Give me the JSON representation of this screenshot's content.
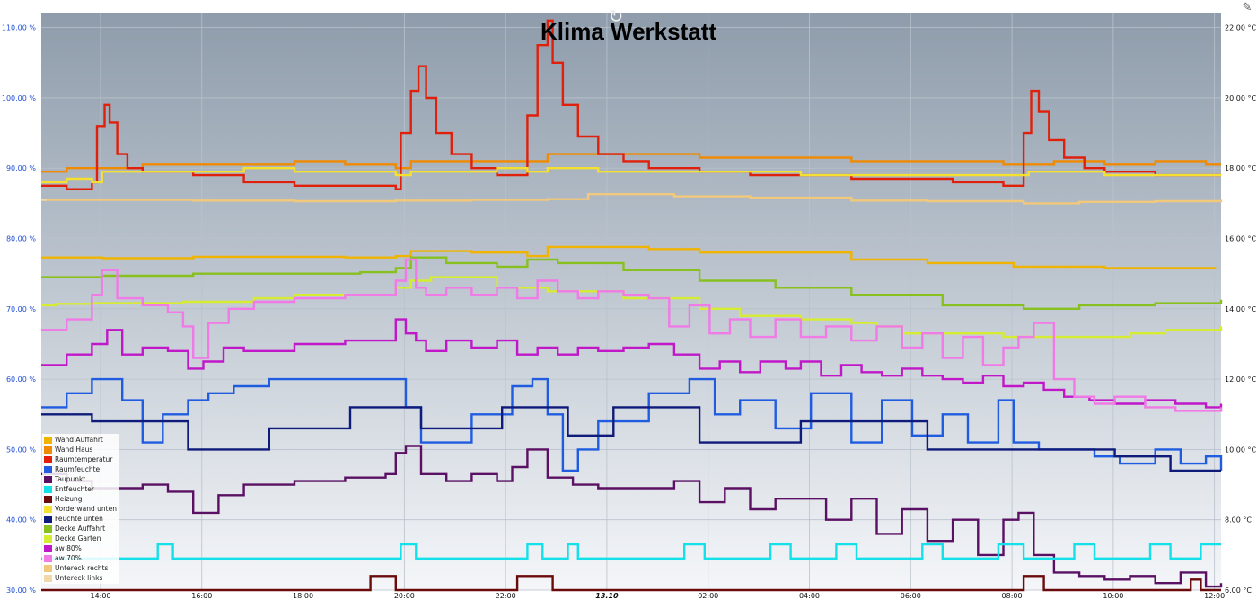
{
  "chart_data": {
    "type": "line",
    "title": "Klima Werkstatt",
    "y_left": {
      "unit": "%",
      "ylim": [
        30,
        112
      ],
      "ticks": [
        "30.00 %",
        "40.00 %",
        "50.00 %",
        "60.00 %",
        "70.00 %",
        "80.00 %",
        "90.00 %",
        "100.00 %",
        "110.00 %"
      ],
      "tick_values": [
        30,
        40,
        50,
        60,
        70,
        80,
        90,
        100,
        110
      ]
    },
    "y_right": {
      "unit": "°C",
      "ylim": [
        6,
        22.4
      ],
      "ticks": [
        "6.00 °C",
        "8.00 °C",
        "10.00 °C",
        "12.00 °C",
        "14.00 °C",
        "16.00 °C",
        "18.00 °C",
        "20.00 °C",
        "22.00 °C"
      ],
      "tick_values": [
        6,
        8,
        10,
        12,
        14,
        16,
        18,
        20,
        22
      ]
    },
    "x_axis": {
      "unit": "hours since 12:50",
      "xlim": [
        0,
        23.3
      ],
      "ticks": [
        {
          "label": "14:00",
          "h": 1.17,
          "bold": false
        },
        {
          "label": "16:00",
          "h": 3.17,
          "bold": false
        },
        {
          "label": "18:00",
          "h": 5.17,
          "bold": false
        },
        {
          "label": "20:00",
          "h": 7.17,
          "bold": false
        },
        {
          "label": "22:00",
          "h": 9.17,
          "bold": false
        },
        {
          "label": "13.10",
          "h": 11.17,
          "bold": true
        },
        {
          "label": "02:00",
          "h": 13.17,
          "bold": false
        },
        {
          "label": "04:00",
          "h": 15.17,
          "bold": false
        },
        {
          "label": "06:00",
          "h": 17.17,
          "bold": false
        },
        {
          "label": "08:00",
          "h": 19.17,
          "bold": false
        },
        {
          "label": "10:00",
          "h": 21.17,
          "bold": false
        },
        {
          "label": "12:00",
          "h": 23.17,
          "bold": false
        }
      ]
    },
    "grid": true,
    "legend_position": "bottom-left",
    "series": [
      {
        "name": "Wand Auffahrt",
        "color": "#f0b400",
        "axis": "left",
        "x": [
          0,
          1.2,
          3,
          6,
          7,
          7.3,
          8.5,
          9.6,
          10,
          12,
          13,
          16,
          17.5,
          19.2,
          21,
          23.2
        ],
        "y": [
          77.3,
          77.2,
          77.4,
          77.3,
          77.5,
          78.2,
          78.0,
          77.5,
          78.8,
          78.5,
          78.0,
          77.0,
          76.5,
          76.0,
          75.8,
          75.8
        ]
      },
      {
        "name": "Wand Haus",
        "color": "#f08a00",
        "axis": "right",
        "x": [
          0,
          0.5,
          1,
          1.5,
          2,
          3,
          4,
          5,
          6,
          7,
          7.3,
          8.5,
          9,
          10,
          11,
          12,
          13,
          14,
          15,
          16,
          17,
          18,
          19,
          20,
          21,
          22,
          23,
          23.3
        ],
        "y": [
          17.9,
          18.0,
          18.0,
          18.0,
          18.1,
          18.1,
          18.1,
          18.2,
          18.1,
          18.0,
          18.2,
          18.2,
          18.2,
          18.4,
          18.4,
          18.4,
          18.3,
          18.3,
          18.3,
          18.2,
          18.2,
          18.2,
          18.1,
          18.2,
          18.1,
          18.2,
          18.1,
          18.1
        ]
      },
      {
        "name": "Raumtemperatur",
        "color": "#e0200a",
        "axis": "right",
        "x": [
          0,
          0.5,
          1,
          1.1,
          1.25,
          1.35,
          1.5,
          1.7,
          2,
          3,
          4,
          5,
          6,
          7,
          7.1,
          7.3,
          7.45,
          7.6,
          7.8,
          8.1,
          8.5,
          9,
          9.5,
          9.6,
          9.8,
          10.0,
          10.1,
          10.3,
          10.6,
          11,
          11.5,
          12,
          13,
          14,
          15,
          16,
          17,
          18,
          19,
          19.4,
          19.55,
          19.7,
          19.9,
          20.2,
          20.6,
          21,
          22,
          23,
          23.3
        ],
        "y": [
          17.5,
          17.4,
          17.6,
          19.2,
          19.8,
          19.3,
          18.4,
          18.0,
          17.9,
          17.8,
          17.6,
          17.5,
          17.5,
          17.4,
          19.0,
          20.2,
          20.9,
          20.0,
          19.0,
          18.4,
          18.0,
          17.8,
          17.8,
          19.5,
          21.5,
          22.2,
          21.0,
          19.8,
          18.9,
          18.4,
          18.2,
          18.0,
          17.9,
          17.8,
          17.8,
          17.7,
          17.7,
          17.6,
          17.5,
          19.0,
          20.2,
          19.6,
          18.8,
          18.3,
          18.0,
          17.9,
          17.8,
          17.8,
          17.8
        ]
      },
      {
        "name": "Raumfeuchte",
        "color": "#1f5ce0",
        "axis": "left",
        "x": [
          0,
          0.5,
          1,
          1.6,
          2.0,
          2.4,
          2.9,
          3.3,
          3.8,
          4.5,
          5.5,
          6.5,
          7.0,
          7.2,
          7.5,
          8.5,
          9.3,
          9.7,
          10.0,
          10.3,
          10.6,
          11.0,
          12.0,
          12.8,
          13.3,
          13.8,
          14.5,
          15.2,
          16,
          16.6,
          17.2,
          17.8,
          18.3,
          18.9,
          19.2,
          19.7,
          20.2,
          20.8,
          21.3,
          22,
          22.5,
          23,
          23.3
        ],
        "y": [
          56,
          58,
          60,
          57,
          51,
          55,
          57,
          58,
          59,
          60,
          60,
          60,
          60,
          56,
          51,
          55,
          59,
          60,
          55,
          47,
          50,
          54,
          58,
          60,
          55,
          57,
          53,
          58,
          51,
          57,
          52,
          55,
          51,
          57,
          51,
          50,
          50,
          49,
          48,
          50,
          48,
          49,
          47
        ]
      },
      {
        "name": "Taupunkt",
        "color": "#5a1063",
        "axis": "right",
        "x": [
          0,
          0.5,
          1,
          1.5,
          2,
          2.5,
          3,
          3.5,
          4,
          5,
          6,
          6.8,
          7.0,
          7.2,
          7.5,
          8.0,
          8.5,
          9.0,
          9.3,
          9.6,
          10.0,
          10.5,
          11,
          12,
          12.5,
          13.0,
          13.5,
          14.0,
          14.5,
          15,
          15.5,
          16,
          16.5,
          17,
          17.5,
          18,
          18.5,
          19,
          19.3,
          19.6,
          20,
          20.5,
          21,
          21.5,
          22,
          22.5,
          23,
          23.3
        ],
        "y": [
          9.3,
          9.1,
          8.9,
          8.9,
          9.0,
          8.8,
          8.2,
          8.7,
          9.0,
          9.1,
          9.2,
          9.3,
          9.9,
          10.1,
          9.3,
          9.1,
          9.3,
          9.1,
          9.5,
          10.0,
          9.2,
          9.0,
          8.9,
          8.9,
          9.1,
          8.5,
          8.9,
          8.3,
          8.6,
          8.6,
          8.0,
          8.6,
          7.6,
          8.3,
          7.4,
          8.0,
          7.0,
          8.0,
          8.2,
          7.0,
          6.5,
          6.4,
          6.3,
          6.4,
          6.2,
          6.5,
          6.1,
          6.2
        ]
      },
      {
        "name": "Entfeuchter",
        "color": "#14e0ea",
        "axis": "left",
        "x": [
          0,
          2.2,
          2.3,
          2.5,
          2.6,
          3.5,
          7.0,
          7.1,
          7.3,
          7.4,
          9.5,
          9.6,
          9.8,
          9.9,
          10.3,
          10.4,
          10.6,
          12.6,
          12.7,
          13.0,
          13.1,
          14.3,
          14.4,
          14.7,
          14.8,
          15.6,
          15.7,
          16.0,
          16.1,
          17.3,
          17.4,
          17.7,
          17.8,
          18.8,
          18.9,
          19.3,
          19.4,
          20.3,
          20.4,
          20.7,
          20.8,
          21.8,
          21.9,
          22.2,
          22.3,
          22.8,
          22.9,
          23.3
        ],
        "y": [
          34.5,
          34.5,
          36.5,
          36.5,
          34.5,
          34.5,
          34.5,
          36.5,
          36.5,
          34.5,
          34.5,
          36.5,
          36.5,
          34.5,
          34.5,
          36.5,
          34.5,
          34.5,
          36.5,
          36.5,
          34.5,
          34.5,
          36.5,
          36.5,
          34.5,
          34.5,
          36.5,
          36.5,
          34.5,
          34.5,
          36.5,
          36.5,
          34.5,
          34.5,
          36.5,
          36.5,
          34.5,
          34.5,
          36.5,
          36.5,
          34.5,
          34.5,
          36.5,
          36.5,
          34.5,
          34.5,
          36.5,
          36.5
        ]
      },
      {
        "name": "Heizung",
        "color": "#6b0b0b",
        "axis": "left",
        "x": [
          0,
          6.4,
          6.5,
          6.9,
          7.0,
          9.3,
          9.4,
          10.0,
          10.1,
          19.3,
          19.4,
          19.7,
          19.8,
          22.6,
          22.7,
          22.8,
          22.9,
          23.3
        ],
        "y": [
          30,
          30,
          32,
          32,
          30,
          30,
          32,
          32,
          30,
          30,
          32,
          32,
          30,
          30,
          31.5,
          31.5,
          30,
          30
        ]
      },
      {
        "name": "Vorderwand unten",
        "color": "#f5e030",
        "axis": "right",
        "x": [
          0,
          0.5,
          1,
          1.2,
          2,
          3,
          4,
          5,
          6,
          7,
          7.3,
          8.5,
          9,
          9.6,
          10,
          11,
          12,
          13,
          14,
          15,
          16,
          17,
          18,
          19,
          19.5,
          20,
          21,
          22,
          23,
          23.3
        ],
        "y": [
          17.6,
          17.7,
          17.6,
          17.9,
          17.9,
          17.9,
          18.0,
          17.9,
          17.9,
          17.8,
          17.9,
          17.9,
          18.0,
          17.9,
          18.0,
          17.9,
          17.9,
          17.9,
          17.9,
          17.8,
          17.8,
          17.8,
          17.8,
          17.8,
          17.9,
          17.9,
          17.8,
          17.8,
          17.8,
          17.8
        ]
      },
      {
        "name": "Feuchte unten",
        "color": "#0f1b7a",
        "axis": "left",
        "x": [
          0,
          0.9,
          1.0,
          2.8,
          2.9,
          4.4,
          4.5,
          6.0,
          6.1,
          7.4,
          7.5,
          9.0,
          9.1,
          10.3,
          10.4,
          11.2,
          11.3,
          12.9,
          13.0,
          14.9,
          15.0,
          17.4,
          17.5,
          19.3,
          19.4,
          21.1,
          21.2,
          22.2,
          22.3,
          22.7,
          22.8,
          23.3
        ],
        "y": [
          55,
          55,
          54,
          54,
          50,
          50,
          53,
          53,
          56,
          56,
          53,
          53,
          56,
          56,
          52,
          52,
          56,
          56,
          51,
          51,
          54,
          54,
          50,
          50,
          50,
          50,
          49,
          49,
          47,
          47,
          47,
          47
        ]
      },
      {
        "name": "Decke Auffahrt",
        "color": "#88c020",
        "axis": "left",
        "x": [
          0,
          1.2,
          3,
          6.3,
          7.0,
          7.3,
          8.0,
          9.0,
          9.6,
          10.2,
          11.5,
          13,
          14.5,
          16,
          17.8,
          19.4,
          20.5,
          22,
          23.3
        ],
        "y": [
          74.5,
          74.7,
          75.0,
          75.2,
          75.8,
          77.3,
          76.5,
          76.0,
          77.0,
          76.5,
          75.5,
          74.0,
          73.0,
          72.0,
          70.5,
          70.0,
          70.5,
          70.8,
          71.3
        ]
      },
      {
        "name": "Decke Garten",
        "color": "#d6ec30",
        "axis": "left",
        "x": [
          0,
          0.3,
          1,
          2.8,
          4.2,
          5,
          6,
          7.0,
          7.3,
          7.7,
          9,
          10,
          11.5,
          13,
          13.8,
          15,
          16,
          16.5,
          17,
          17.5,
          18.5,
          19,
          19.6,
          21.5,
          22.2,
          23.3
        ],
        "y": [
          70.5,
          70.7,
          70.8,
          71.0,
          71.5,
          72.0,
          72.0,
          73.0,
          74.0,
          74.5,
          73.0,
          72.5,
          71.5,
          70.0,
          69.0,
          68.5,
          68.0,
          67.5,
          66.5,
          66.5,
          66.5,
          66.0,
          66.0,
          66.5,
          67.0,
          67.5
        ]
      },
      {
        "name": "aw 80%",
        "color": "#c018c8",
        "axis": "left",
        "x": [
          0,
          0.5,
          1,
          1.3,
          1.6,
          2,
          2.5,
          2.9,
          3.2,
          3.6,
          4,
          5,
          6,
          6.6,
          7.0,
          7.2,
          7.4,
          7.6,
          8.0,
          8.5,
          9,
          9.4,
          9.8,
          10.2,
          10.6,
          11,
          11.5,
          12.0,
          12.5,
          13.0,
          13.4,
          13.8,
          14.2,
          14.7,
          15,
          15.4,
          15.8,
          16.2,
          16.6,
          17,
          17.4,
          17.8,
          18.2,
          18.6,
          19,
          19.4,
          19.8,
          20.2,
          20.7,
          21.2,
          21.8,
          22.4,
          23,
          23.3
        ],
        "y": [
          62,
          63.5,
          65,
          67,
          63.5,
          64.5,
          64.0,
          61.5,
          62.5,
          64.5,
          64.0,
          65.0,
          65.5,
          65.5,
          68.5,
          66.5,
          65.5,
          64.0,
          65.5,
          64.5,
          65.5,
          63.5,
          64.5,
          63.5,
          64.5,
          64.0,
          64.5,
          65.0,
          63.5,
          61.5,
          62.5,
          61.0,
          62.5,
          61.5,
          62.5,
          60.5,
          62.0,
          61.0,
          60.5,
          61.5,
          60.5,
          60.0,
          59.5,
          60.5,
          59.0,
          59.5,
          58.5,
          57.5,
          57.0,
          56.5,
          57.0,
          56.5,
          56.0,
          56.5
        ]
      },
      {
        "name": "aw 70%",
        "color": "#f07ae6",
        "axis": "left",
        "x": [
          0,
          0.5,
          1,
          1.2,
          1.5,
          2,
          2.5,
          2.8,
          3.0,
          3.3,
          3.7,
          4.2,
          5,
          6,
          7.0,
          7.2,
          7.4,
          7.6,
          8.0,
          8.5,
          9,
          9.4,
          9.8,
          10.2,
          10.6,
          11,
          11.5,
          12.0,
          12.4,
          12.8,
          13.2,
          13.6,
          14.0,
          14.5,
          15,
          15.5,
          16,
          16.5,
          17,
          17.4,
          17.8,
          18.2,
          18.6,
          19,
          19.3,
          19.6,
          20,
          20.4,
          20.8,
          21.2,
          21.8,
          22.4,
          23,
          23.3
        ],
        "y": [
          67,
          68.5,
          72,
          75.5,
          71.5,
          70.5,
          69.5,
          67.5,
          63.0,
          68.0,
          70.0,
          71.0,
          71.5,
          72.0,
          74.0,
          77.0,
          73.0,
          72.0,
          73.0,
          72.0,
          73.0,
          71.5,
          74.0,
          72.5,
          71.5,
          72.5,
          72.0,
          71.5,
          67.5,
          70.5,
          66.5,
          68.5,
          66.0,
          68.5,
          66.0,
          67.5,
          65.5,
          67.5,
          64.5,
          66.5,
          63.0,
          66.0,
          62.0,
          64.5,
          66.0,
          68.0,
          60.0,
          57.5,
          56.5,
          57.5,
          56.0,
          55.5,
          55.5,
          56.0
        ]
      },
      {
        "name": "Untereck rechts",
        "color": "#f2c87a",
        "axis": "left",
        "x": [
          0,
          3,
          5,
          7.0,
          8.5,
          10,
          10.8,
          12.5,
          14,
          16,
          17.5,
          19.4,
          20.5,
          22,
          23.3
        ],
        "y": [
          85.5,
          85.4,
          85.3,
          85.4,
          85.5,
          85.6,
          86.3,
          86.0,
          85.8,
          85.4,
          85.3,
          85.0,
          85.2,
          85.3,
          85.5
        ]
      },
      {
        "name": "Untereck links",
        "color": "#f0d8a8",
        "axis": "left",
        "x": [
          0,
          0.1
        ],
        "y": [
          85.5,
          85.5
        ]
      }
    ],
    "xlabel": "",
    "ylabel": ""
  },
  "ui": {
    "reload_icon": "reload-icon",
    "edit_icon": "pencil-icon"
  }
}
